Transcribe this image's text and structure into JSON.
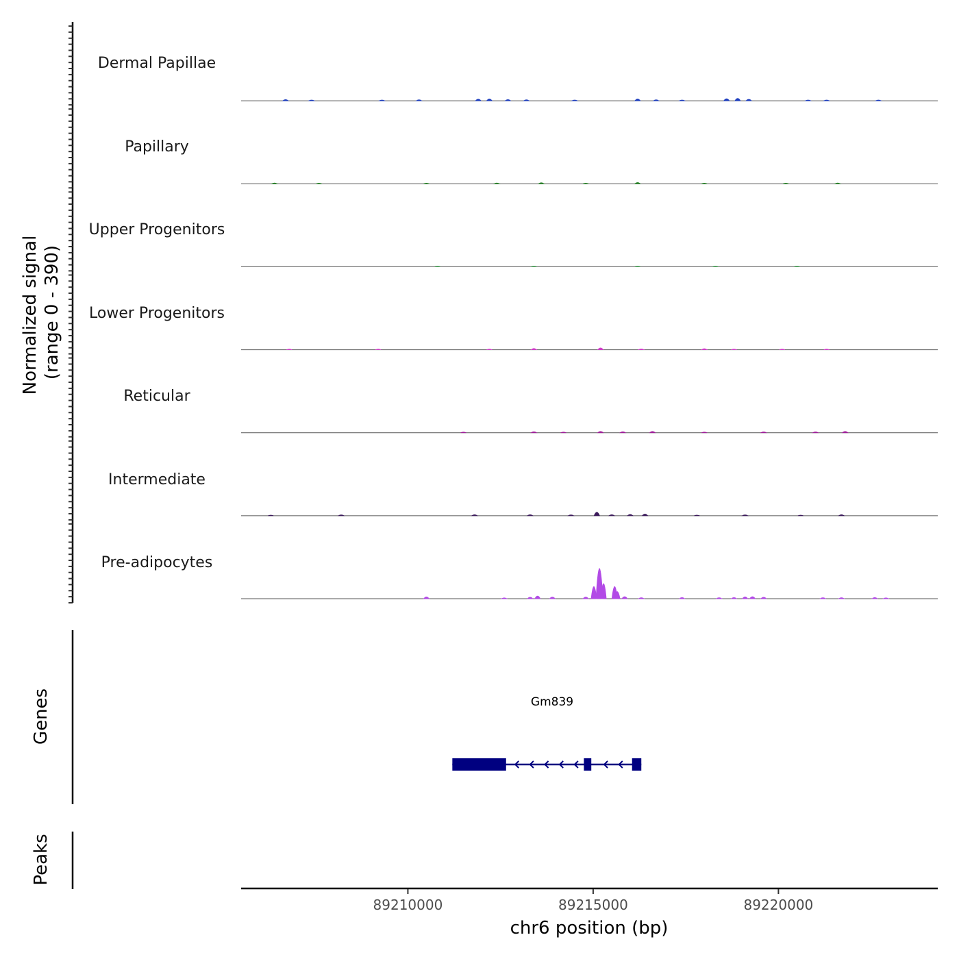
{
  "chart_data": {
    "type": "area",
    "title": "",
    "xlabel": "chr6 position (bp)",
    "xlim": [
      89205500,
      89224300
    ],
    "xticks": [
      89210000,
      89215000,
      89220000
    ],
    "xtick_labels": [
      "89210000",
      "89215000",
      "89220000"
    ],
    "signal_axis": {
      "title_line1": "Normalized signal",
      "title_line2": "(range 0 - 390)",
      "range": [
        0,
        390
      ]
    },
    "tracks": [
      {
        "name": "Dermal Papillae",
        "color": "#1f3fbf",
        "peaks": [
          [
            89206700,
            6
          ],
          [
            89207400,
            4
          ],
          [
            89209300,
            4
          ],
          [
            89210300,
            5
          ],
          [
            89211900,
            8
          ],
          [
            89212200,
            9
          ],
          [
            89212700,
            6
          ],
          [
            89213200,
            5
          ],
          [
            89214500,
            4
          ],
          [
            89216200,
            9
          ],
          [
            89216700,
            5
          ],
          [
            89217400,
            4
          ],
          [
            89218600,
            10
          ],
          [
            89218900,
            12
          ],
          [
            89219200,
            7
          ],
          [
            89220800,
            4
          ],
          [
            89221300,
            4
          ],
          [
            89222700,
            4
          ]
        ]
      },
      {
        "name": "Papillary",
        "color": "#1a7a1a",
        "peaks": [
          [
            89206400,
            4
          ],
          [
            89207600,
            3
          ],
          [
            89210500,
            3
          ],
          [
            89212400,
            4
          ],
          [
            89213600,
            5
          ],
          [
            89214800,
            3
          ],
          [
            89216200,
            6
          ],
          [
            89218000,
            3
          ],
          [
            89220200,
            3
          ],
          [
            89221600,
            4
          ]
        ]
      },
      {
        "name": "Upper Progenitors",
        "color": "#2f8f3f",
        "peaks": [
          [
            89210800,
            2
          ],
          [
            89213400,
            2
          ],
          [
            89216200,
            2
          ],
          [
            89218300,
            2
          ],
          [
            89220500,
            2
          ]
        ]
      },
      {
        "name": "Lower Progenitors",
        "color": "#d040c8",
        "peaks": [
          [
            89206800,
            3
          ],
          [
            89209200,
            3
          ],
          [
            89212200,
            3
          ],
          [
            89213400,
            6
          ],
          [
            89215200,
            9
          ],
          [
            89216300,
            4
          ],
          [
            89218000,
            5
          ],
          [
            89218800,
            3
          ],
          [
            89220100,
            3
          ],
          [
            89221300,
            3
          ]
        ]
      },
      {
        "name": "Reticular",
        "color": "#a0209a",
        "peaks": [
          [
            89211500,
            3
          ],
          [
            89213400,
            5
          ],
          [
            89214200,
            3
          ],
          [
            89215200,
            6
          ],
          [
            89215800,
            5
          ],
          [
            89216600,
            6
          ],
          [
            89218000,
            3
          ],
          [
            89219600,
            4
          ],
          [
            89221000,
            4
          ],
          [
            89221800,
            6
          ]
        ]
      },
      {
        "name": "Intermediate",
        "color": "#3b1a5a",
        "peaks": [
          [
            89206300,
            3
          ],
          [
            89208200,
            4
          ],
          [
            89211800,
            5
          ],
          [
            89213300,
            5
          ],
          [
            89214400,
            4
          ],
          [
            89215100,
            17
          ],
          [
            89215500,
            5
          ],
          [
            89216000,
            6
          ],
          [
            89216400,
            8
          ],
          [
            89217800,
            3
          ],
          [
            89219100,
            4
          ],
          [
            89220600,
            3
          ],
          [
            89221700,
            5
          ]
        ]
      },
      {
        "name": "Pre-adipocytes",
        "color": "#b24ae6",
        "peaks": [
          [
            89210500,
            9
          ],
          [
            89212600,
            4
          ],
          [
            89213300,
            7
          ],
          [
            89213500,
            13
          ],
          [
            89213900,
            8
          ],
          [
            89214800,
            8
          ],
          [
            89215020,
            60
          ],
          [
            89215170,
            150
          ],
          [
            89215280,
            75
          ],
          [
            89215580,
            60
          ],
          [
            89215650,
            35
          ],
          [
            89215850,
            10
          ],
          [
            89216300,
            5
          ],
          [
            89217400,
            6
          ],
          [
            89218400,
            5
          ],
          [
            89218800,
            6
          ],
          [
            89219100,
            9
          ],
          [
            89219300,
            10
          ],
          [
            89219600,
            7
          ],
          [
            89221200,
            5
          ],
          [
            89221700,
            5
          ],
          [
            89222600,
            6
          ],
          [
            89222900,
            4
          ]
        ]
      }
    ],
    "genes": {
      "axis_title": "Genes",
      "items": [
        {
          "name": "Gm839",
          "start": 89211200,
          "end": 89216300,
          "strand": "-",
          "color": "#000080",
          "exons": [
            [
              89211200,
              89212650
            ],
            [
              89214750,
              89214950
            ],
            [
              89216050,
              89216300
            ]
          ]
        }
      ]
    },
    "peaks_track": {
      "axis_title": "Peaks",
      "regions": []
    }
  }
}
